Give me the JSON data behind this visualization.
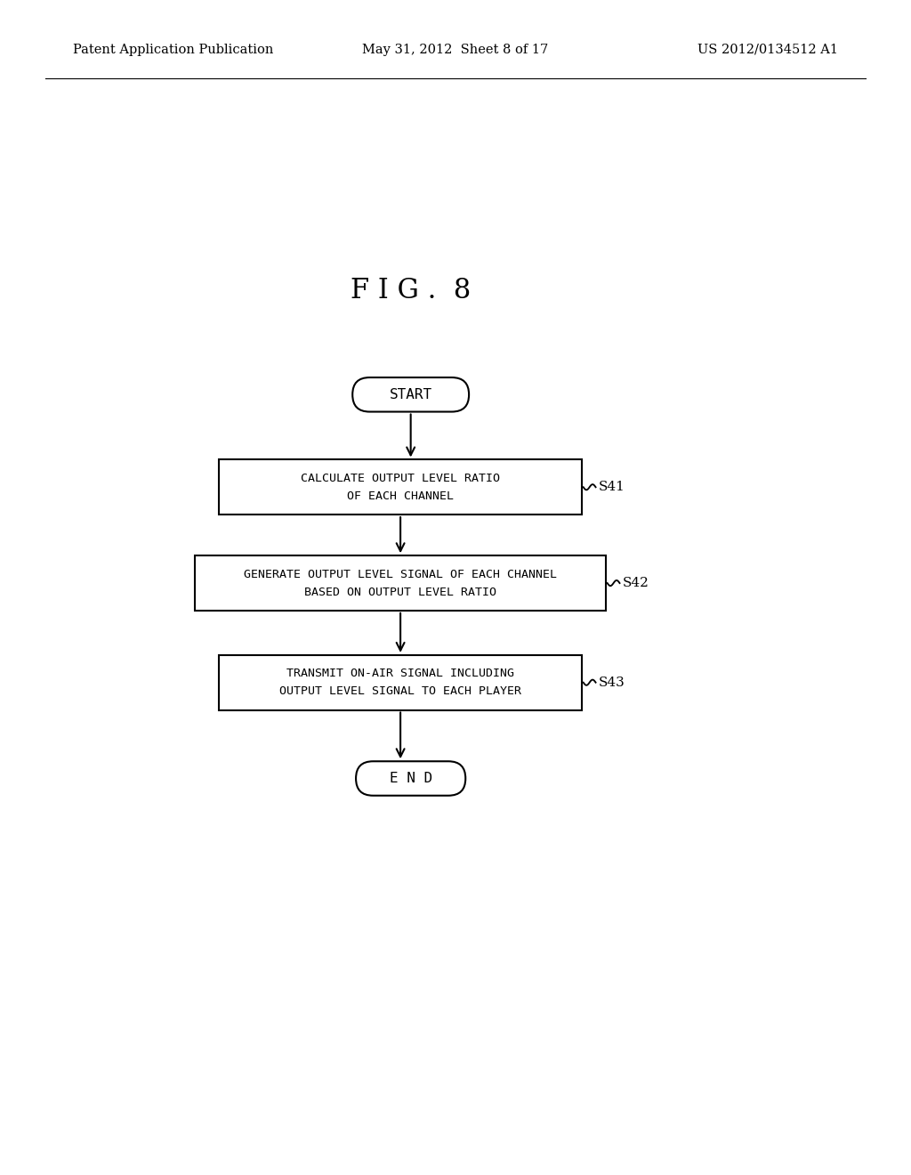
{
  "bg_color": "#ffffff",
  "header_left": "Patent Application Publication",
  "header_center": "May 31, 2012  Sheet 8 of 17",
  "header_right": "US 2012/0134512 A1",
  "header_fontsize": 10.5,
  "figure_label": "F I G .  8",
  "figure_label_fontsize": 22,
  "start_text": "START",
  "end_text": "E N D",
  "box1_line1": "CALCULATE OUTPUT LEVEL RATIO",
  "box1_line2": "OF EACH CHANNEL",
  "box1_label": "S41",
  "box2_line1": "GENERATE OUTPUT LEVEL SIGNAL OF EACH CHANNEL",
  "box2_line2": "BASED ON OUTPUT LEVEL RATIO",
  "box2_label": "S42",
  "box3_line1": "TRANSMIT ON-AIR SIGNAL INCLUDING",
  "box3_line2": "OUTPUT LEVEL SIGNAL TO EACH PLAYER",
  "box3_label": "S43",
  "text_fontsize": 9.5,
  "label_fontsize": 11,
  "line_color": "#000000",
  "linewidth": 1.5
}
